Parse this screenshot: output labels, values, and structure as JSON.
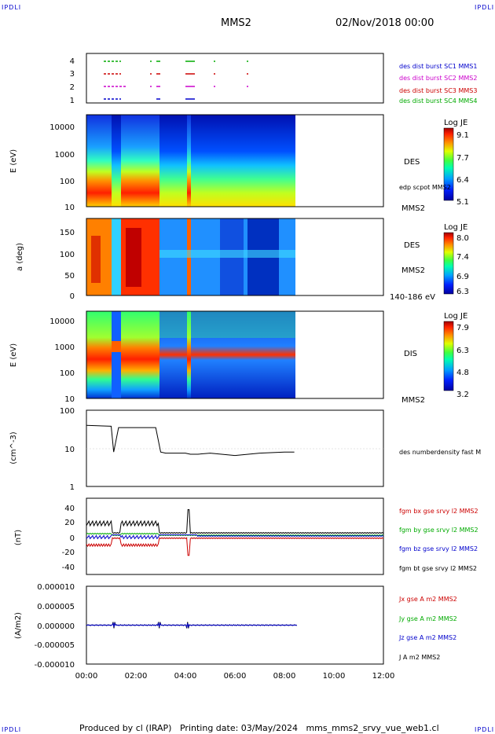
{
  "header": {
    "corner_left": "IPDLI",
    "corner_right": "IPDLI",
    "spacecraft": "MMS2",
    "date": "02/Nov/2018 00:00"
  },
  "footer": {
    "produced": "Produced by cl (IRAP)",
    "printing": "Printing date: 03/May/2024",
    "file": "mms_mms2_srvy_vue_web1.cl",
    "corner_left": "IPDLI",
    "corner_right": "IPDLI"
  },
  "colors": {
    "blue": "#0000cc",
    "magenta": "#cc00cc",
    "red": "#cc0000",
    "green": "#00aa00",
    "black": "#000000"
  },
  "chart_data": [
    {
      "type": "scatter",
      "name": "burst-availability",
      "y_ticks": [
        "4",
        "3",
        "2",
        "1"
      ],
      "legend": [
        {
          "label": "des dist burst SC1 MMS1",
          "color": "#0000cc"
        },
        {
          "label": "des dist burst SC2 MMS2",
          "color": "#cc00cc"
        },
        {
          "label": "des dist burst SC3 MMS3",
          "color": "#cc0000"
        },
        {
          "label": "des dist burst SC4 MMS4",
          "color": "#00aa00"
        }
      ]
    },
    {
      "type": "heatmap",
      "name": "des-energy",
      "ylabel": "E (eV)",
      "y_ticks": [
        "10000",
        "1000",
        "100",
        "10"
      ],
      "colorbar": {
        "title": "Log JE",
        "ticks": [
          "9.1",
          "7.7",
          "6.4",
          "5.1"
        ]
      },
      "side_labels": [
        "DES",
        "edp scpot MMS2",
        "MMS2"
      ]
    },
    {
      "type": "heatmap",
      "name": "des-pitch-angle",
      "ylabel": "a (deg)",
      "y_ticks": [
        "150",
        "100",
        "50",
        "0"
      ],
      "colorbar": {
        "title": "Log JE",
        "ticks": [
          "8.0",
          "7.4",
          "6.9",
          "6.3"
        ]
      },
      "side_labels": [
        "DES",
        "MMS2",
        "140-186 eV"
      ]
    },
    {
      "type": "heatmap",
      "name": "dis-energy",
      "ylabel": "E (eV)",
      "y_ticks": [
        "10000",
        "1000",
        "100",
        "10"
      ],
      "colorbar": {
        "title": "Log JE",
        "ticks": [
          "7.9",
          "6.3",
          "4.8",
          "3.2"
        ]
      },
      "side_labels": [
        "DIS",
        "MMS2"
      ]
    },
    {
      "type": "line",
      "name": "density",
      "ylabel": "(cm^-3)",
      "y_ticks": [
        "100",
        "10",
        "1"
      ],
      "scale": "log",
      "series": [
        {
          "name": "des numberdensity fast M",
          "color": "#000000"
        }
      ],
      "x": [
        0.0,
        1.0,
        1.1,
        1.3,
        2.8,
        3.0,
        3.2,
        4.0,
        4.2,
        4.5,
        5.0,
        6.0,
        7.0,
        8.0,
        8.4
      ],
      "y": [
        40,
        38,
        8,
        35,
        35,
        8,
        7.5,
        7.5,
        7,
        7,
        7.5,
        6.5,
        7.5,
        8,
        8
      ]
    },
    {
      "type": "line",
      "name": "magnetic-field",
      "ylabel": "(nT)",
      "y_ticks": [
        "40",
        "20",
        "0",
        "-20",
        "-40"
      ],
      "ylim": [
        -50,
        50
      ],
      "series": [
        {
          "name": "fgm bx gse srvy l2 MMS2",
          "color": "#cc0000"
        },
        {
          "name": "fgm by gse srvy l2 MMS2",
          "color": "#00aa00"
        },
        {
          "name": "fgm bz gse srvy l2 MMS2",
          "color": "#0000cc"
        },
        {
          "name": "fgm bt gse srvy l2 MMS2",
          "color": "#000000"
        }
      ]
    },
    {
      "type": "line",
      "name": "current-density",
      "ylabel": "(A/m2)",
      "y_ticks": [
        "0.000010",
        "0.000005",
        "0.000000",
        "-0.000005",
        "-0.000010"
      ],
      "ylim": [
        -1e-05,
        1e-05
      ],
      "series": [
        {
          "name": "Jx gse A m2 MMS2",
          "color": "#cc0000"
        },
        {
          "name": "Jy gse A m2 MMS2",
          "color": "#00aa00"
        },
        {
          "name": "Jz gse A m2 MMS2",
          "color": "#0000cc"
        },
        {
          "name": "J A m2 MMS2",
          "color": "#000000"
        }
      ]
    }
  ],
  "x_ticks": [
    "00:00",
    "02:00",
    "04:00",
    "06:00",
    "08:00",
    "10:00",
    "12:00"
  ]
}
